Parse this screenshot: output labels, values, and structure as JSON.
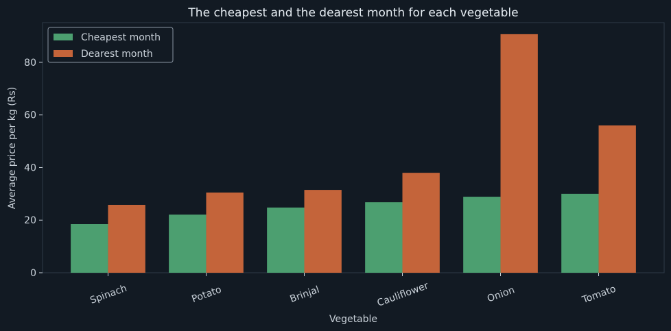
{
  "chart_data": {
    "type": "bar",
    "title": "The cheapest and the dearest month for each vegetable",
    "x_label": "Vegetable",
    "y_label": "Average price per kg (Rs)",
    "categories": [
      "Spinach",
      "Potato",
      "Brinjal",
      "Cauliflower",
      "Onion",
      "Tomato"
    ],
    "series": [
      {
        "name": "Cheapest month",
        "color": "#4c9f70",
        "values": [
          18.5,
          22.1,
          24.8,
          26.8,
          28.9,
          30.0
        ]
      },
      {
        "name": "Dearest month",
        "color": "#c4643a",
        "values": [
          25.8,
          30.5,
          31.5,
          38.0,
          90.7,
          56.0
        ]
      }
    ],
    "ylim": [
      0,
      95.1
    ],
    "yticks": [
      0,
      20,
      40,
      60,
      80
    ],
    "grid": false,
    "legend": "upper-left"
  }
}
